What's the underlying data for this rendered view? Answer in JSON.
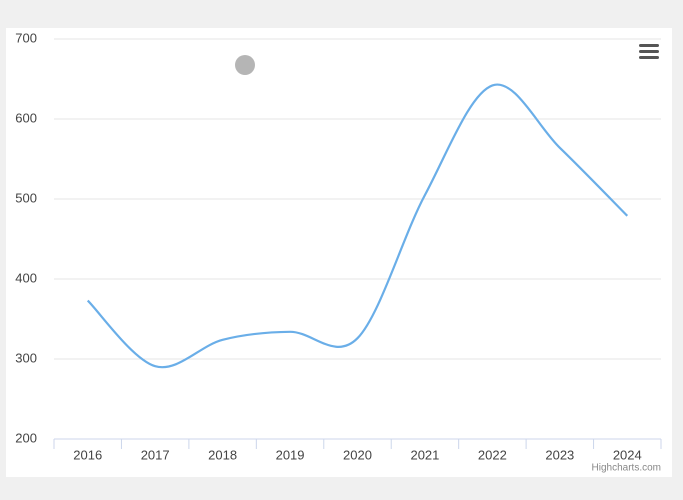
{
  "chart_data": {
    "type": "line",
    "smooth": true,
    "categories": [
      "2016",
      "2017",
      "2018",
      "2019",
      "2020",
      "2021",
      "2022",
      "2023",
      "2024"
    ],
    "values": [
      373,
      291,
      324,
      334,
      326,
      505,
      642,
      564,
      479
    ],
    "color": "#6aaee8",
    "ylim": [
      200,
      700
    ],
    "yticks": [
      200,
      300,
      400,
      500,
      600,
      700
    ],
    "grid": true,
    "credits": "Highcharts.com"
  }
}
